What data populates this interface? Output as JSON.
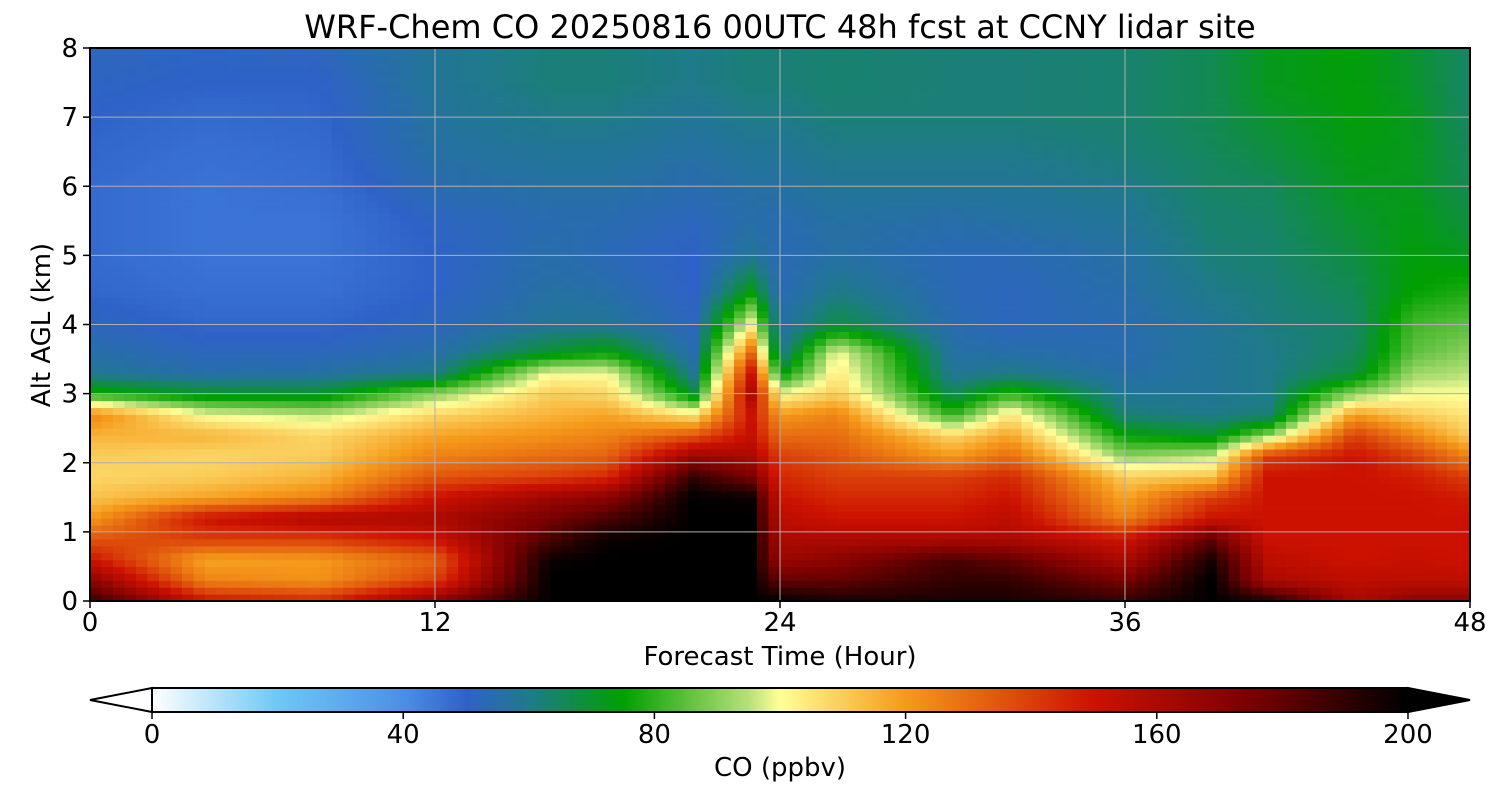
{
  "chart_data": {
    "type": "heatmap",
    "title": "WRF-Chem CO  20250816 00UTC 48h fcst at CCNY lidar site",
    "xlabel": "Forecast Time (Hour)",
    "ylabel": "Alt AGL (km)",
    "xlim": [
      0,
      48
    ],
    "ylim": [
      0,
      8
    ],
    "xticks": [
      "0",
      "12",
      "24",
      "36",
      "48"
    ],
    "yticks": [
      "0",
      "1",
      "2",
      "3",
      "4",
      "5",
      "6",
      "7",
      "8"
    ],
    "grid": true,
    "colorbar": {
      "label": "CO  (ppbv)",
      "range": [
        0,
        200
      ],
      "ticks": [
        "0",
        "40",
        "80",
        "120",
        "160",
        "200"
      ],
      "extend": "both",
      "colors": [
        {
          "value": 0,
          "color": "#ffffff"
        },
        {
          "value": 20,
          "color": "#6ec8f5"
        },
        {
          "value": 40,
          "color": "#4c8fe6"
        },
        {
          "value": 50,
          "color": "#2f62c8"
        },
        {
          "value": 60,
          "color": "#1f7a8a"
        },
        {
          "value": 75,
          "color": "#00a000"
        },
        {
          "value": 95,
          "color": "#b8e07a"
        },
        {
          "value": 100,
          "color": "#ffff99"
        },
        {
          "value": 120,
          "color": "#f59a1a"
        },
        {
          "value": 150,
          "color": "#cc1100"
        },
        {
          "value": 175,
          "color": "#7a0000"
        },
        {
          "value": 200,
          "color": "#000000"
        }
      ]
    },
    "hours": [
      0,
      2,
      4,
      6,
      8,
      10,
      12,
      14,
      16,
      17,
      18,
      20,
      21,
      22,
      23,
      24,
      25,
      26,
      28,
      30,
      32,
      34,
      36,
      38,
      39,
      40,
      41,
      42,
      44,
      46,
      47,
      48
    ],
    "altitudes_km": [
      0.0,
      0.3,
      0.6,
      0.9,
      1.2,
      1.5,
      1.8,
      2.1,
      2.4,
      2.7,
      3.0,
      3.3,
      3.6,
      4.0,
      4.5,
      5.0,
      5.5,
      6.0,
      6.5,
      7.0,
      7.5,
      8.0
    ],
    "series": [
      {
        "hour": 0,
        "co_ppbv": [
          190,
          170,
          150,
          135,
          120,
          112,
          108,
          110,
          115,
          125,
          78,
          58,
          55,
          52,
          49,
          48,
          48,
          48,
          49,
          50,
          51,
          52
        ]
      },
      {
        "hour": 4,
        "co_ppbv": [
          150,
          125,
          118,
          140,
          150,
          118,
          110,
          108,
          115,
          100,
          70,
          55,
          52,
          49,
          47,
          46,
          46,
          46,
          47,
          48,
          50,
          51
        ]
      },
      {
        "hour": 8,
        "co_ppbv": [
          145,
          122,
          120,
          140,
          160,
          125,
          115,
          110,
          108,
          95,
          70,
          56,
          52,
          49,
          47,
          46,
          46,
          47,
          48,
          49,
          50,
          52
        ]
      },
      {
        "hour": 12,
        "co_ppbv": [
          170,
          140,
          132,
          150,
          160,
          150,
          135,
          125,
          118,
          108,
          90,
          60,
          55,
          52,
          50,
          50,
          51,
          54,
          56,
          57,
          58,
          58
        ]
      },
      {
        "hour": 16,
        "co_ppbv": [
          200,
          200,
          198,
          185,
          175,
          165,
          140,
          130,
          122,
          115,
          110,
          100,
          70,
          58,
          56,
          55,
          54,
          56,
          58,
          60,
          62,
          62
        ]
      },
      {
        "hour": 18,
        "co_ppbv": [
          200,
          200,
          200,
          198,
          185,
          170,
          145,
          132,
          125,
          118,
          108,
          100,
          75,
          58,
          55,
          53,
          54,
          56,
          58,
          60,
          62,
          62
        ]
      },
      {
        "hour": 21,
        "co_ppbv": [
          200,
          200,
          200,
          200,
          200,
          200,
          190,
          165,
          135,
          105,
          70,
          58,
          54,
          52,
          50,
          50,
          52,
          54,
          56,
          58,
          60,
          60
        ]
      },
      {
        "hour": 23,
        "co_ppbv": [
          200,
          200,
          200,
          200,
          200,
          198,
          175,
          160,
          152,
          150,
          160,
          150,
          130,
          100,
          72,
          58,
          55,
          56,
          58,
          60,
          62,
          62
        ]
      },
      {
        "hour": 24,
        "co_ppbv": [
          200,
          180,
          165,
          160,
          155,
          150,
          145,
          140,
          130,
          120,
          100,
          72,
          58,
          55,
          53,
          53,
          54,
          56,
          58,
          60,
          62,
          62
        ]
      },
      {
        "hour": 26,
        "co_ppbv": [
          195,
          180,
          170,
          160,
          150,
          145,
          140,
          135,
          130,
          125,
          110,
          105,
          100,
          68,
          60,
          56,
          56,
          58,
          60,
          62,
          63,
          63
        ]
      },
      {
        "hour": 30,
        "co_ppbv": [
          195,
          190,
          185,
          160,
          150,
          145,
          140,
          120,
          108,
          80,
          65,
          58,
          56,
          54,
          53,
          53,
          55,
          58,
          60,
          62,
          62,
          62
        ]
      },
      {
        "hour": 32,
        "co_ppbv": [
          195,
          190,
          180,
          160,
          155,
          150,
          145,
          130,
          118,
          105,
          80,
          60,
          55,
          52,
          52,
          53,
          56,
          58,
          60,
          62,
          62,
          62
        ]
      },
      {
        "hour": 36,
        "co_ppbv": [
          190,
          175,
          160,
          150,
          125,
          118,
          110,
          90,
          75,
          62,
          58,
          55,
          54,
          54,
          55,
          56,
          58,
          60,
          62,
          63,
          63,
          63
        ]
      },
      {
        "hour": 39,
        "co_ppbv": [
          200,
          200,
          195,
          180,
          150,
          140,
          112,
          95,
          70,
          60,
          58,
          58,
          58,
          58,
          60,
          62,
          63,
          64,
          65,
          66,
          66,
          66
        ]
      },
      {
        "hour": 41,
        "co_ppbv": [
          195,
          160,
          155,
          150,
          150,
          150,
          150,
          140,
          90,
          62,
          60,
          60,
          60,
          61,
          62,
          63,
          64,
          65,
          68,
          70,
          72,
          72
        ]
      },
      {
        "hour": 44,
        "co_ppbv": [
          160,
          155,
          150,
          150,
          150,
          150,
          150,
          150,
          140,
          120,
          90,
          68,
          65,
          64,
          66,
          68,
          70,
          72,
          73,
          74,
          74,
          74
        ]
      },
      {
        "hour": 46,
        "co_ppbv": [
          170,
          155,
          152,
          150,
          150,
          150,
          148,
          140,
          125,
          110,
          100,
          92,
          85,
          82,
          75,
          74,
          73,
          72,
          72,
          72,
          70,
          70
        ]
      },
      {
        "hour": 48,
        "co_ppbv": [
          170,
          155,
          150,
          150,
          150,
          148,
          140,
          125,
          110,
          105,
          100,
          95,
          90,
          85,
          78,
          72,
          68,
          66,
          65,
          64,
          64,
          64
        ]
      }
    ]
  }
}
